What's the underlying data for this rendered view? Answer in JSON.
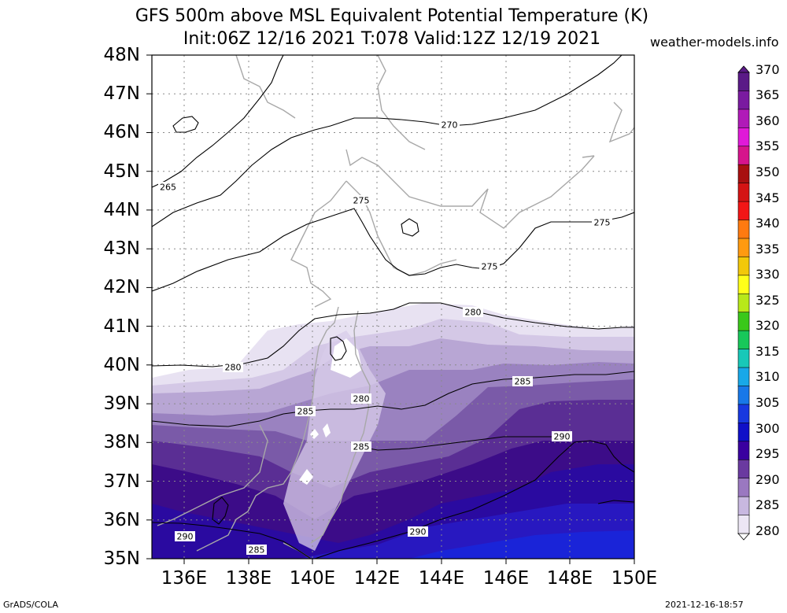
{
  "title_line1": "GFS 500m above MSL Equivalent Potential Temperature (K)",
  "title_line2": "Init:06Z 12/16 2021 T:078 Valid:12Z 12/19 2021",
  "site": "weather-models.info",
  "footer_left": "GrADS/COLA",
  "footer_right": "2021-12-16-18:57",
  "lat_labels": [
    "48N",
    "47N",
    "46N",
    "45N",
    "44N",
    "43N",
    "42N",
    "41N",
    "40N",
    "39N",
    "38N",
    "37N",
    "36N",
    "35N"
  ],
  "lon_labels": [
    "136E",
    "138E",
    "140E",
    "142E",
    "144E",
    "146E",
    "148E",
    "150E"
  ],
  "colorbar_labels": [
    "370",
    "365",
    "360",
    "355",
    "350",
    "345",
    "340",
    "335",
    "330",
    "325",
    "320",
    "315",
    "310",
    "305",
    "300",
    "295",
    "290",
    "285",
    "280"
  ],
  "colorbar_colors": [
    "#5a1a87",
    "#7a1aa0",
    "#b01ab8",
    "#e01ad8",
    "#d6148c",
    "#a81010",
    "#d41414",
    "#f21616",
    "#ff7a10",
    "#ff9a10",
    "#f2c80a",
    "#ffff1a",
    "#b8e81a",
    "#3ac81a",
    "#18c85a",
    "#18c8b8",
    "#18a8e8",
    "#1878e8",
    "#1838e0",
    "#1010c8",
    "#3a00a0",
    "#6a3aa0",
    "#9a78c0",
    "#c8b8e0",
    "#ece6f4"
  ],
  "contour_labels": [
    "265",
    "270",
    "275",
    "275",
    "275",
    "280",
    "280",
    "280",
    "285",
    "285",
    "285",
    "290",
    "290",
    "290",
    "285"
  ],
  "chart_data": {
    "type": "heatmap",
    "title": "GFS 500m above MSL Equivalent Potential Temperature (K)",
    "subtitle": "Init:06Z 12/16 2021 T:078 Valid:12Z 12/19 2021",
    "variable": "Equivalent Potential Temperature (K)",
    "x_range": [
      135,
      150
    ],
    "y_range": [
      35,
      48
    ],
    "colorbar_range": [
      280,
      370
    ],
    "contour_levels": [
      265,
      270,
      275,
      280,
      285,
      290
    ],
    "grid": true
  }
}
